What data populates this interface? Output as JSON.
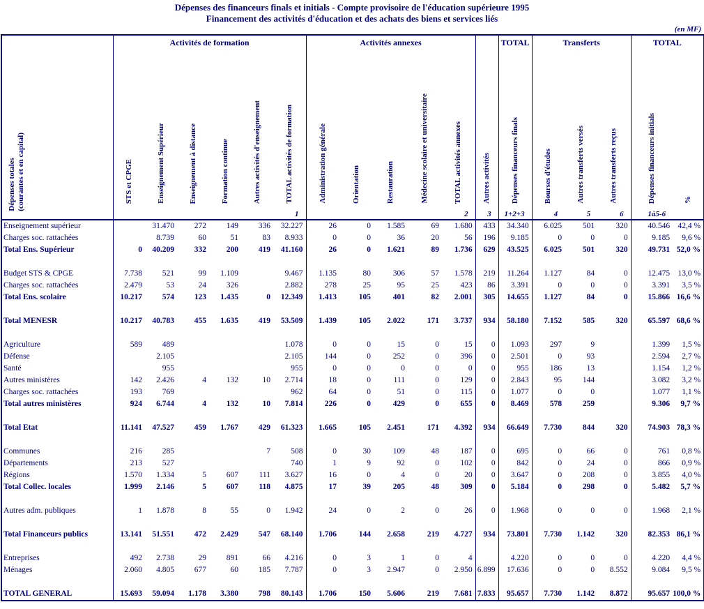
{
  "colors": {
    "ink": "#000080",
    "background": "#ffffff"
  },
  "header": {
    "title_line1": "Dépenses des financeurs finals et initials - Compte provisoire de l'éducation supérieure 1995",
    "title_line2": "Financement des activités d'éducation et des achats des biens et services liés",
    "unit_note": "(en MF)"
  },
  "table": {
    "corner_label": "Dépenses totales\n(courantes et en capital)",
    "label_col_width": 160,
    "groups": [
      {
        "label": "Activités de formation",
        "span": 6,
        "sep": true
      },
      {
        "label": "Activités annexes",
        "span": 5,
        "sep": true
      },
      {
        "label": "",
        "span": 1,
        "sep": true
      },
      {
        "label": "TOTAL",
        "span": 1,
        "sep": true
      },
      {
        "label": "Transferts",
        "span": 3,
        "sep": true
      },
      {
        "label": "TOTAL",
        "span": 2,
        "sep": false
      }
    ],
    "columns": [
      {
        "label": "STS et CPGE",
        "num": "",
        "width": 46,
        "sep": false
      },
      {
        "label": "Enseignement Supérieur",
        "num": "",
        "width": 46,
        "sep": false
      },
      {
        "label": "Enseignement à distance",
        "num": "",
        "width": 46,
        "sep": false
      },
      {
        "label": "Formation continue",
        "num": "",
        "width": 46,
        "sep": false
      },
      {
        "label": "Autres activités d'enseignement",
        "num": "",
        "width": 46,
        "sep": false
      },
      {
        "label": "TOTAL activités de formation",
        "num": "1",
        "width": 47,
        "sep": true
      },
      {
        "label": "Administration générale",
        "num": "",
        "width": 48,
        "sep": false
      },
      {
        "label": "Orientation",
        "num": "",
        "width": 49,
        "sep": false
      },
      {
        "label": "Restauration",
        "num": "",
        "width": 49,
        "sep": false
      },
      {
        "label": "Médecine scolaire et universitaire",
        "num": "",
        "width": 49,
        "sep": false
      },
      {
        "label": "TOTAL activités annexes",
        "num": "2",
        "width": 48,
        "sep": true
      },
      {
        "label": "Autres activités",
        "num": "3",
        "width": 33,
        "sep": true
      },
      {
        "label": "Dépenses financeurs finals",
        "num": "1+2+3",
        "width": 48,
        "sep": true
      },
      {
        "label": "Bourses d'études",
        "num": "4",
        "width": 47,
        "sep": false
      },
      {
        "label": "Autres transferts versés",
        "num": "5",
        "width": 47,
        "sep": false
      },
      {
        "label": "Autres transferts reçus",
        "num": "6",
        "width": 48,
        "sep": true
      },
      {
        "label": "Dépenses financeurs initials",
        "num": "1à5-6",
        "width": 60,
        "sep": false
      },
      {
        "label": "%",
        "num": "",
        "width": 45,
        "sep": false
      }
    ],
    "rows": [
      {
        "label": "Enseignement supérieur",
        "bold": false,
        "cells": [
          "",
          "31.470",
          "272",
          "149",
          "336",
          "32.227",
          "26",
          "0",
          "1.585",
          "69",
          "1.680",
          "433",
          "34.340",
          "6.025",
          "501",
          "320",
          "40.546",
          "42,4 %"
        ]
      },
      {
        "label": "Charges soc. rattachées",
        "bold": false,
        "cells": [
          "",
          "8.739",
          "60",
          "51",
          "83",
          "8.933",
          "0",
          "0",
          "36",
          "20",
          "56",
          "196",
          "9.185",
          "0",
          "0",
          "0",
          "9.185",
          "9,6 %"
        ]
      },
      {
        "label": "Total Ens. Supérieur",
        "bold": true,
        "cells": [
          "0",
          "40.209",
          "332",
          "200",
          "419",
          "41.160",
          "26",
          "0",
          "1.621",
          "89",
          "1.736",
          "629",
          "43.525",
          "6.025",
          "501",
          "320",
          "49.731",
          "52,0 %"
        ]
      },
      {
        "blank": true
      },
      {
        "label": "Budget STS & CPGE",
        "bold": false,
        "cells": [
          "7.738",
          "521",
          "99",
          "1.109",
          "",
          "9.467",
          "1.135",
          "80",
          "306",
          "57",
          "1.578",
          "219",
          "11.264",
          "1.127",
          "84",
          "0",
          "12.475",
          "13,0 %"
        ]
      },
      {
        "label": "Charges soc. rattachées",
        "bold": false,
        "cells": [
          "2.479",
          "53",
          "24",
          "326",
          "",
          "2.882",
          "278",
          "25",
          "95",
          "25",
          "423",
          "86",
          "3.391",
          "0",
          "0",
          "0",
          "3.391",
          "3,5 %"
        ]
      },
      {
        "label": "Total Ens. scolaire",
        "bold": true,
        "cells": [
          "10.217",
          "574",
          "123",
          "1.435",
          "0",
          "12.349",
          "1.413",
          "105",
          "401",
          "82",
          "2.001",
          "305",
          "14.655",
          "1.127",
          "84",
          "0",
          "15.866",
          "16,6 %"
        ]
      },
      {
        "blank": true
      },
      {
        "label": "Total MENESR",
        "bold": true,
        "cells": [
          "10.217",
          "40.783",
          "455",
          "1.635",
          "419",
          "53.509",
          "1.439",
          "105",
          "2.022",
          "171",
          "3.737",
          "934",
          "58.180",
          "7.152",
          "585",
          "320",
          "65.597",
          "68,6 %"
        ]
      },
      {
        "blank": true
      },
      {
        "label": "Agriculture",
        "bold": false,
        "cells": [
          "589",
          "489",
          "",
          "",
          "",
          "1.078",
          "0",
          "0",
          "15",
          "0",
          "15",
          "0",
          "1.093",
          "297",
          "9",
          "",
          "1.399",
          "1,5 %"
        ]
      },
      {
        "label": "Défense",
        "bold": false,
        "cells": [
          "",
          "2.105",
          "",
          "",
          "",
          "2.105",
          "144",
          "0",
          "252",
          "0",
          "396",
          "0",
          "2.501",
          "0",
          "93",
          "",
          "2.594",
          "2,7 %"
        ]
      },
      {
        "label": "Santé",
        "bold": false,
        "cells": [
          "",
          "955",
          "",
          "",
          "",
          "955",
          "0",
          "0",
          "0",
          "0",
          "0",
          "0",
          "955",
          "186",
          "13",
          "",
          "1.154",
          "1,2 %"
        ]
      },
      {
        "label": "Autres ministères",
        "bold": false,
        "cells": [
          "142",
          "2.426",
          "4",
          "132",
          "10",
          "2.714",
          "18",
          "0",
          "111",
          "0",
          "129",
          "0",
          "2.843",
          "95",
          "144",
          "",
          "3.082",
          "3,2 %"
        ]
      },
      {
        "label": "Charges soc. rattachées",
        "bold": false,
        "cells": [
          "193",
          "769",
          "",
          "",
          "",
          "962",
          "64",
          "0",
          "51",
          "0",
          "115",
          "0",
          "1.077",
          "0",
          "0",
          "",
          "1.077",
          "1,1 %"
        ]
      },
      {
        "label": "Total autres ministères",
        "bold": true,
        "cells": [
          "924",
          "6.744",
          "4",
          "132",
          "10",
          "7.814",
          "226",
          "0",
          "429",
          "0",
          "655",
          "0",
          "8.469",
          "578",
          "259",
          "",
          "9.306",
          "9,7 %"
        ]
      },
      {
        "blank": true
      },
      {
        "label": "Total Etat",
        "bold": true,
        "cells": [
          "11.141",
          "47.527",
          "459",
          "1.767",
          "429",
          "61.323",
          "1.665",
          "105",
          "2.451",
          "171",
          "4.392",
          "934",
          "66.649",
          "7.730",
          "844",
          "320",
          "74.903",
          "78,3 %"
        ]
      },
      {
        "blank": true
      },
      {
        "label": "Communes",
        "bold": false,
        "cells": [
          "216",
          "285",
          "",
          "",
          "7",
          "508",
          "0",
          "30",
          "109",
          "48",
          "187",
          "0",
          "695",
          "0",
          "66",
          "0",
          "761",
          "0,8 %"
        ]
      },
      {
        "label": "Départements",
        "bold": false,
        "cells": [
          "213",
          "527",
          "",
          "",
          "",
          "740",
          "1",
          "9",
          "92",
          "0",
          "102",
          "0",
          "842",
          "0",
          "24",
          "0",
          "866",
          "0,9 %"
        ]
      },
      {
        "label": "Régions",
        "bold": false,
        "cells": [
          "1.570",
          "1.334",
          "5",
          "607",
          "111",
          "3.627",
          "16",
          "0",
          "4",
          "0",
          "20",
          "0",
          "3.647",
          "0",
          "208",
          "0",
          "3.855",
          "4,0 %"
        ]
      },
      {
        "label": "Total Collec. locales",
        "bold": true,
        "cells": [
          "1.999",
          "2.146",
          "5",
          "607",
          "118",
          "4.875",
          "17",
          "39",
          "205",
          "48",
          "309",
          "0",
          "5.184",
          "0",
          "298",
          "0",
          "5.482",
          "5,7 %"
        ]
      },
      {
        "blank": true
      },
      {
        "label": "Autres adm. publiques",
        "bold": false,
        "cells": [
          "1",
          "1.878",
          "8",
          "55",
          "0",
          "1.942",
          "24",
          "0",
          "2",
          "0",
          "26",
          "0",
          "1.968",
          "0",
          "0",
          "0",
          "1.968",
          "2,1 %"
        ]
      },
      {
        "blank": true
      },
      {
        "label": "Total Financeurs publics",
        "bold": true,
        "cells": [
          "13.141",
          "51.551",
          "472",
          "2.429",
          "547",
          "68.140",
          "1.706",
          "144",
          "2.658",
          "219",
          "4.727",
          "934",
          "73.801",
          "7.730",
          "1.142",
          "320",
          "82.353",
          "86,1 %"
        ]
      },
      {
        "blank": true
      },
      {
        "label": "Entreprises",
        "bold": false,
        "cells": [
          "492",
          "2.738",
          "29",
          "891",
          "66",
          "4.216",
          "0",
          "3",
          "1",
          "0",
          "4",
          "",
          "4.220",
          "0",
          "0",
          "0",
          "4.220",
          "4,4 %"
        ]
      },
      {
        "label": "Ménages",
        "bold": false,
        "cells": [
          "2.060",
          "4.805",
          "677",
          "60",
          "185",
          "7.787",
          "0",
          "3",
          "2.947",
          "0",
          "2.950",
          "6.899",
          "17.636",
          "0",
          "0",
          "8.552",
          "9.084",
          "9,5 %"
        ]
      },
      {
        "blank": true
      },
      {
        "label": "TOTAL GENERAL",
        "bold": true,
        "cells": [
          "15.693",
          "59.094",
          "1.178",
          "3.380",
          "798",
          "80.143",
          "1.706",
          "150",
          "5.606",
          "219",
          "7.681",
          "7.833",
          "95.657",
          "7.730",
          "1.142",
          "8.872",
          "95.657",
          "100,0 %"
        ]
      }
    ]
  }
}
